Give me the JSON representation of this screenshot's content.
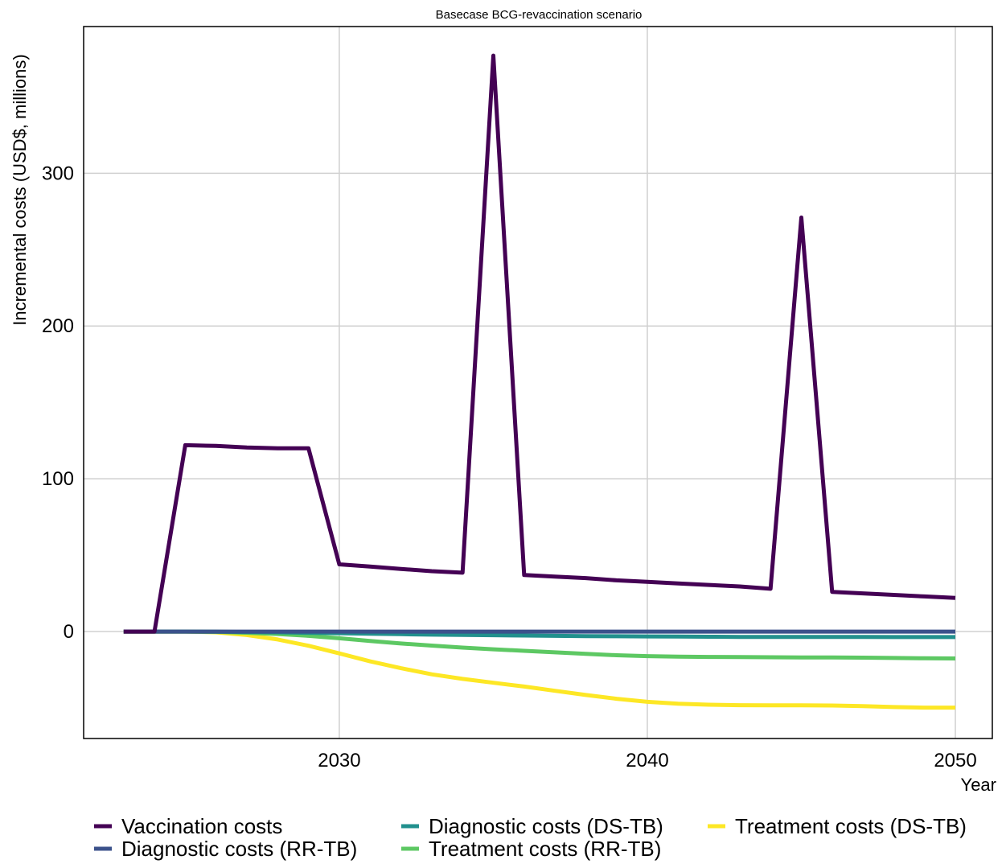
{
  "chart_data": {
    "type": "line",
    "title": "Basecase BCG-revaccination scenario",
    "xlabel": "Year",
    "ylabel": "Incremental costs (USD$, millions)",
    "xlim": [
      2021.7,
      2051.2
    ],
    "ylim": [
      -70,
      396
    ],
    "x_ticks": [
      2030,
      2040,
      2050
    ],
    "y_ticks": [
      0,
      100,
      200,
      300
    ],
    "grid": true,
    "legend_position": "bottom",
    "x": [
      2023,
      2024,
      2025,
      2026,
      2027,
      2028,
      2029,
      2030,
      2031,
      2032,
      2033,
      2034,
      2035,
      2036,
      2037,
      2038,
      2039,
      2040,
      2041,
      2042,
      2043,
      2044,
      2045,
      2046,
      2047,
      2048,
      2049,
      2050
    ],
    "series": [
      {
        "name": "Vaccination costs",
        "color": "#440154",
        "values": [
          0,
          0,
          122,
          121.5,
          120.5,
          120,
          120,
          44,
          42.5,
          41,
          39.5,
          38.5,
          377,
          37,
          36,
          35,
          33.5,
          32.5,
          31.5,
          30.5,
          29.5,
          28,
          271,
          26,
          25,
          24,
          23,
          22
        ]
      },
      {
        "name": "Diagnostic costs (RR-TB)",
        "color": "#3b528b",
        "values": [
          0,
          0,
          0,
          0,
          0,
          0,
          0,
          0,
          0,
          0,
          0,
          0,
          0,
          0,
          0,
          0,
          0,
          0,
          0,
          0,
          0,
          0,
          0,
          0,
          0,
          0,
          0,
          0
        ]
      },
      {
        "name": "Diagnostic costs (DS-TB)",
        "color": "#21908d",
        "values": [
          0,
          0,
          0,
          -0.1,
          -0.3,
          -0.5,
          -0.8,
          -1.1,
          -1.4,
          -1.7,
          -2,
          -2.2,
          -2.4,
          -2.6,
          -2.8,
          -3,
          -3.1,
          -3.2,
          -3.3,
          -3.4,
          -3.5,
          -3.5,
          -3.5,
          -3.5,
          -3.5,
          -3.6,
          -3.6,
          -3.6
        ]
      },
      {
        "name": "Treatment costs (RR-TB)",
        "color": "#5dc863",
        "values": [
          0,
          0,
          0,
          -0.2,
          -0.8,
          -1.6,
          -2.8,
          -4.4,
          -6.2,
          -7.8,
          -9.2,
          -10.5,
          -11.6,
          -12.6,
          -13.6,
          -14.6,
          -15.5,
          -16.1,
          -16.4,
          -16.6,
          -16.7,
          -16.8,
          -16.9,
          -17,
          -17.1,
          -17.3,
          -17.5,
          -17.6
        ]
      },
      {
        "name": "Treatment costs (DS-TB)",
        "color": "#fde725",
        "values": [
          0,
          0,
          0,
          -0.5,
          -2.3,
          -5.2,
          -9.3,
          -14.3,
          -19.5,
          -24,
          -28,
          -31,
          -33.5,
          -36,
          -38.8,
          -41.5,
          -44,
          -46,
          -47.2,
          -47.9,
          -48.2,
          -48.3,
          -48.3,
          -48.4,
          -48.8,
          -49.4,
          -49.8,
          -49.8
        ]
      }
    ]
  }
}
